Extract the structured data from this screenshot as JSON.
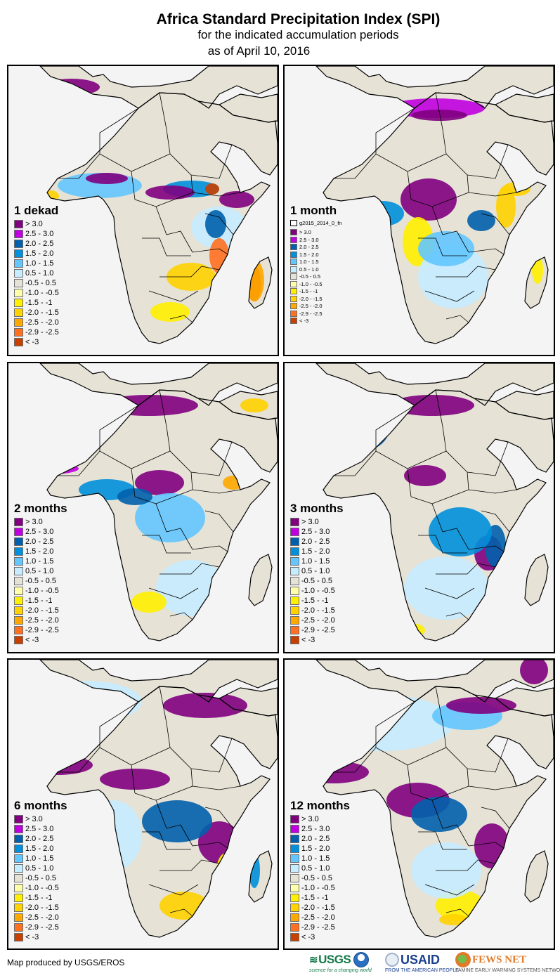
{
  "header": {
    "title": "Africa Standard Precipitation Index (SPI)",
    "subtitle": "for the indicated accumulation periods",
    "date_line": "as of April 10, 2016"
  },
  "legend_classes": [
    {
      "label": "> 3.0",
      "color": "#800080"
    },
    {
      "label": "2.5 - 3.0",
      "color": "#c000e0"
    },
    {
      "label": "2.0 - 2.5",
      "color": "#0060ac"
    },
    {
      "label": "1.5 - 2.0",
      "color": "#0090dc"
    },
    {
      "label": "1.0 - 1.5",
      "color": "#63c6fe"
    },
    {
      "label": "0.5 - 1.0",
      "color": "#c6ecff"
    },
    {
      "label": "-0.5 - 0.5",
      "color": "#e6e2d6"
    },
    {
      "label": "-1.0 - -0.5",
      "color": "#ffffaa"
    },
    {
      "label": "-1.5 - -1",
      "color": "#ffef00"
    },
    {
      "label": "-2.0 - -1.5",
      "color": "#ffd200"
    },
    {
      "label": "-2.5 - -2.0",
      "color": "#ffa800"
    },
    {
      "label": "-2.9 - -2.5",
      "color": "#ff7020"
    },
    {
      "label": "< -3",
      "color": "#c84000"
    }
  ],
  "panels": [
    {
      "id": "1-dekad",
      "title": "1 dekad",
      "small_legend": false,
      "extra_legend_item": null,
      "dominant_classes": [
        "wet-west-africa-sahel",
        "wet-central-africa",
        "dry-madagascar",
        "dry-mozambique"
      ]
    },
    {
      "id": "1-month",
      "title": "1 month",
      "small_legend": true,
      "extra_legend_item": "g2015_2014_0_fn",
      "dominant_classes": [
        "wet-central-africa",
        "dry-angola-coast",
        "dry-east-africa"
      ]
    },
    {
      "id": "2-months",
      "title": "2 months",
      "small_legend": false,
      "extra_legend_item": null,
      "dominant_classes": [
        "wet-north-africa",
        "wet-central-africa",
        "dry-southern-africa"
      ]
    },
    {
      "id": "3-months",
      "title": "3 months",
      "small_legend": false,
      "extra_legend_item": null,
      "dominant_classes": [
        "wet-mali",
        "wet-central-africa",
        "wet-tanzania"
      ]
    },
    {
      "id": "6-months",
      "title": "6 months",
      "small_legend": false,
      "extra_legend_item": null,
      "dominant_classes": [
        "wet-sahel",
        "wet-tanzania",
        "dry-south-africa"
      ]
    },
    {
      "id": "12-months",
      "title": "12 months",
      "small_legend": false,
      "extra_legend_item": null,
      "dominant_classes": [
        "wet-west-africa",
        "wet-tanzania",
        "dry-south-africa"
      ]
    }
  ],
  "footer": {
    "credit": "Map produced by USGS/EROS",
    "logos": {
      "usgs": "USGS",
      "usgs_tagline": "science for a changing world",
      "usaid": "USAID",
      "usaid_tagline": "FROM THE AMERICAN PEOPLE",
      "fews": "FEWS NET",
      "fews_tagline": "FAMINE EARLY WARNING SYSTEMS NETWORK"
    }
  }
}
